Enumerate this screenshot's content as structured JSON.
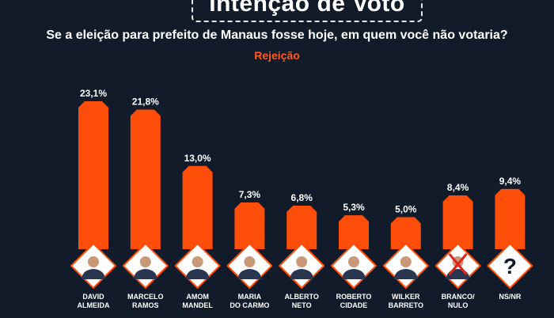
{
  "header": {
    "title": "Intenção de Voto",
    "question": "Se a eleição para prefeito de Manaus fosse hoje, em quem você não votaria?",
    "subtitle": "Rejeição"
  },
  "colors": {
    "background": "#111b2a",
    "bar": "#ff4d0a",
    "accent_text": "#ff5a1f"
  },
  "chart_data": {
    "type": "bar",
    "title": "Se a eleição para prefeito de Manaus fosse hoje, em quem você não votaria?",
    "subtitle": "Rejeição",
    "categories": [
      [
        "DAVID",
        "ALMEIDA"
      ],
      [
        "MARCELO",
        "RAMOS"
      ],
      [
        "AMOM",
        "MANDEL"
      ],
      [
        "MARIA",
        "DO CARMO"
      ],
      [
        "ALBERTO",
        "NETO"
      ],
      [
        "ROBERTO",
        "CIDADE"
      ],
      [
        "WILKER",
        "BARRETO"
      ],
      [
        "BRANCO/",
        "NULO"
      ],
      [
        "NS/NR"
      ]
    ],
    "values": [
      23.1,
      21.8,
      13.0,
      7.3,
      6.8,
      5.3,
      5.0,
      8.4,
      9.4
    ],
    "value_labels": [
      "23,1%",
      "21,8%",
      "13,0%",
      "7,3%",
      "6,8%",
      "5,3%",
      "5,0%",
      "8,4%",
      "9,4%"
    ],
    "icons": [
      "person-photo",
      "person-photo",
      "person-photo",
      "person-photo",
      "person-photo",
      "person-photo",
      "person-photo",
      "crossed-out-ballot-icon",
      "question-mark-icon"
    ],
    "ylim": [
      0,
      23.1
    ],
    "grid": false
  }
}
